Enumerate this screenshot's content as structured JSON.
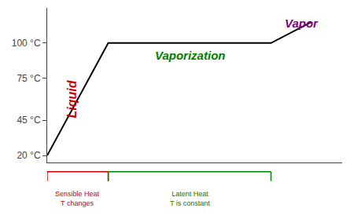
{
  "chart_data": {
    "type": "line",
    "x": [
      0,
      3,
      7,
      11,
      13
    ],
    "values": [
      20,
      100,
      100,
      100,
      115
    ],
    "color": "#000000",
    "xlim": [
      0,
      14.5
    ],
    "xticks": [],
    "ylim": [
      15,
      125
    ],
    "yticks": [
      {
        "value": 20,
        "label": "20 °C"
      },
      {
        "value": 45,
        "label": "45 °C"
      },
      {
        "value": 75,
        "label": "75 °C"
      },
      {
        "value": 100,
        "label": "100 °C"
      }
    ],
    "tick_labels": "y",
    "grid": false,
    "annotations": [
      {
        "text": "Liquid",
        "x": 1.2,
        "y": 60,
        "color": "#cc0000",
        "vertical": true
      },
      {
        "text": "Vaporization",
        "x": 7,
        "y": 91,
        "color": "#008000"
      },
      {
        "text": "Vapor",
        "x": 12.5,
        "y": 114,
        "color": "#800080"
      }
    ],
    "brackets": [
      {
        "x_start": 0,
        "x_end": 3,
        "label": [
          "Sensible Heat",
          "T changes"
        ],
        "color": "#cc0000"
      },
      {
        "x_start": 3,
        "x_end": 11,
        "label": [
          "Latent Heat",
          "T is constant"
        ],
        "color": "#008000"
      }
    ]
  }
}
